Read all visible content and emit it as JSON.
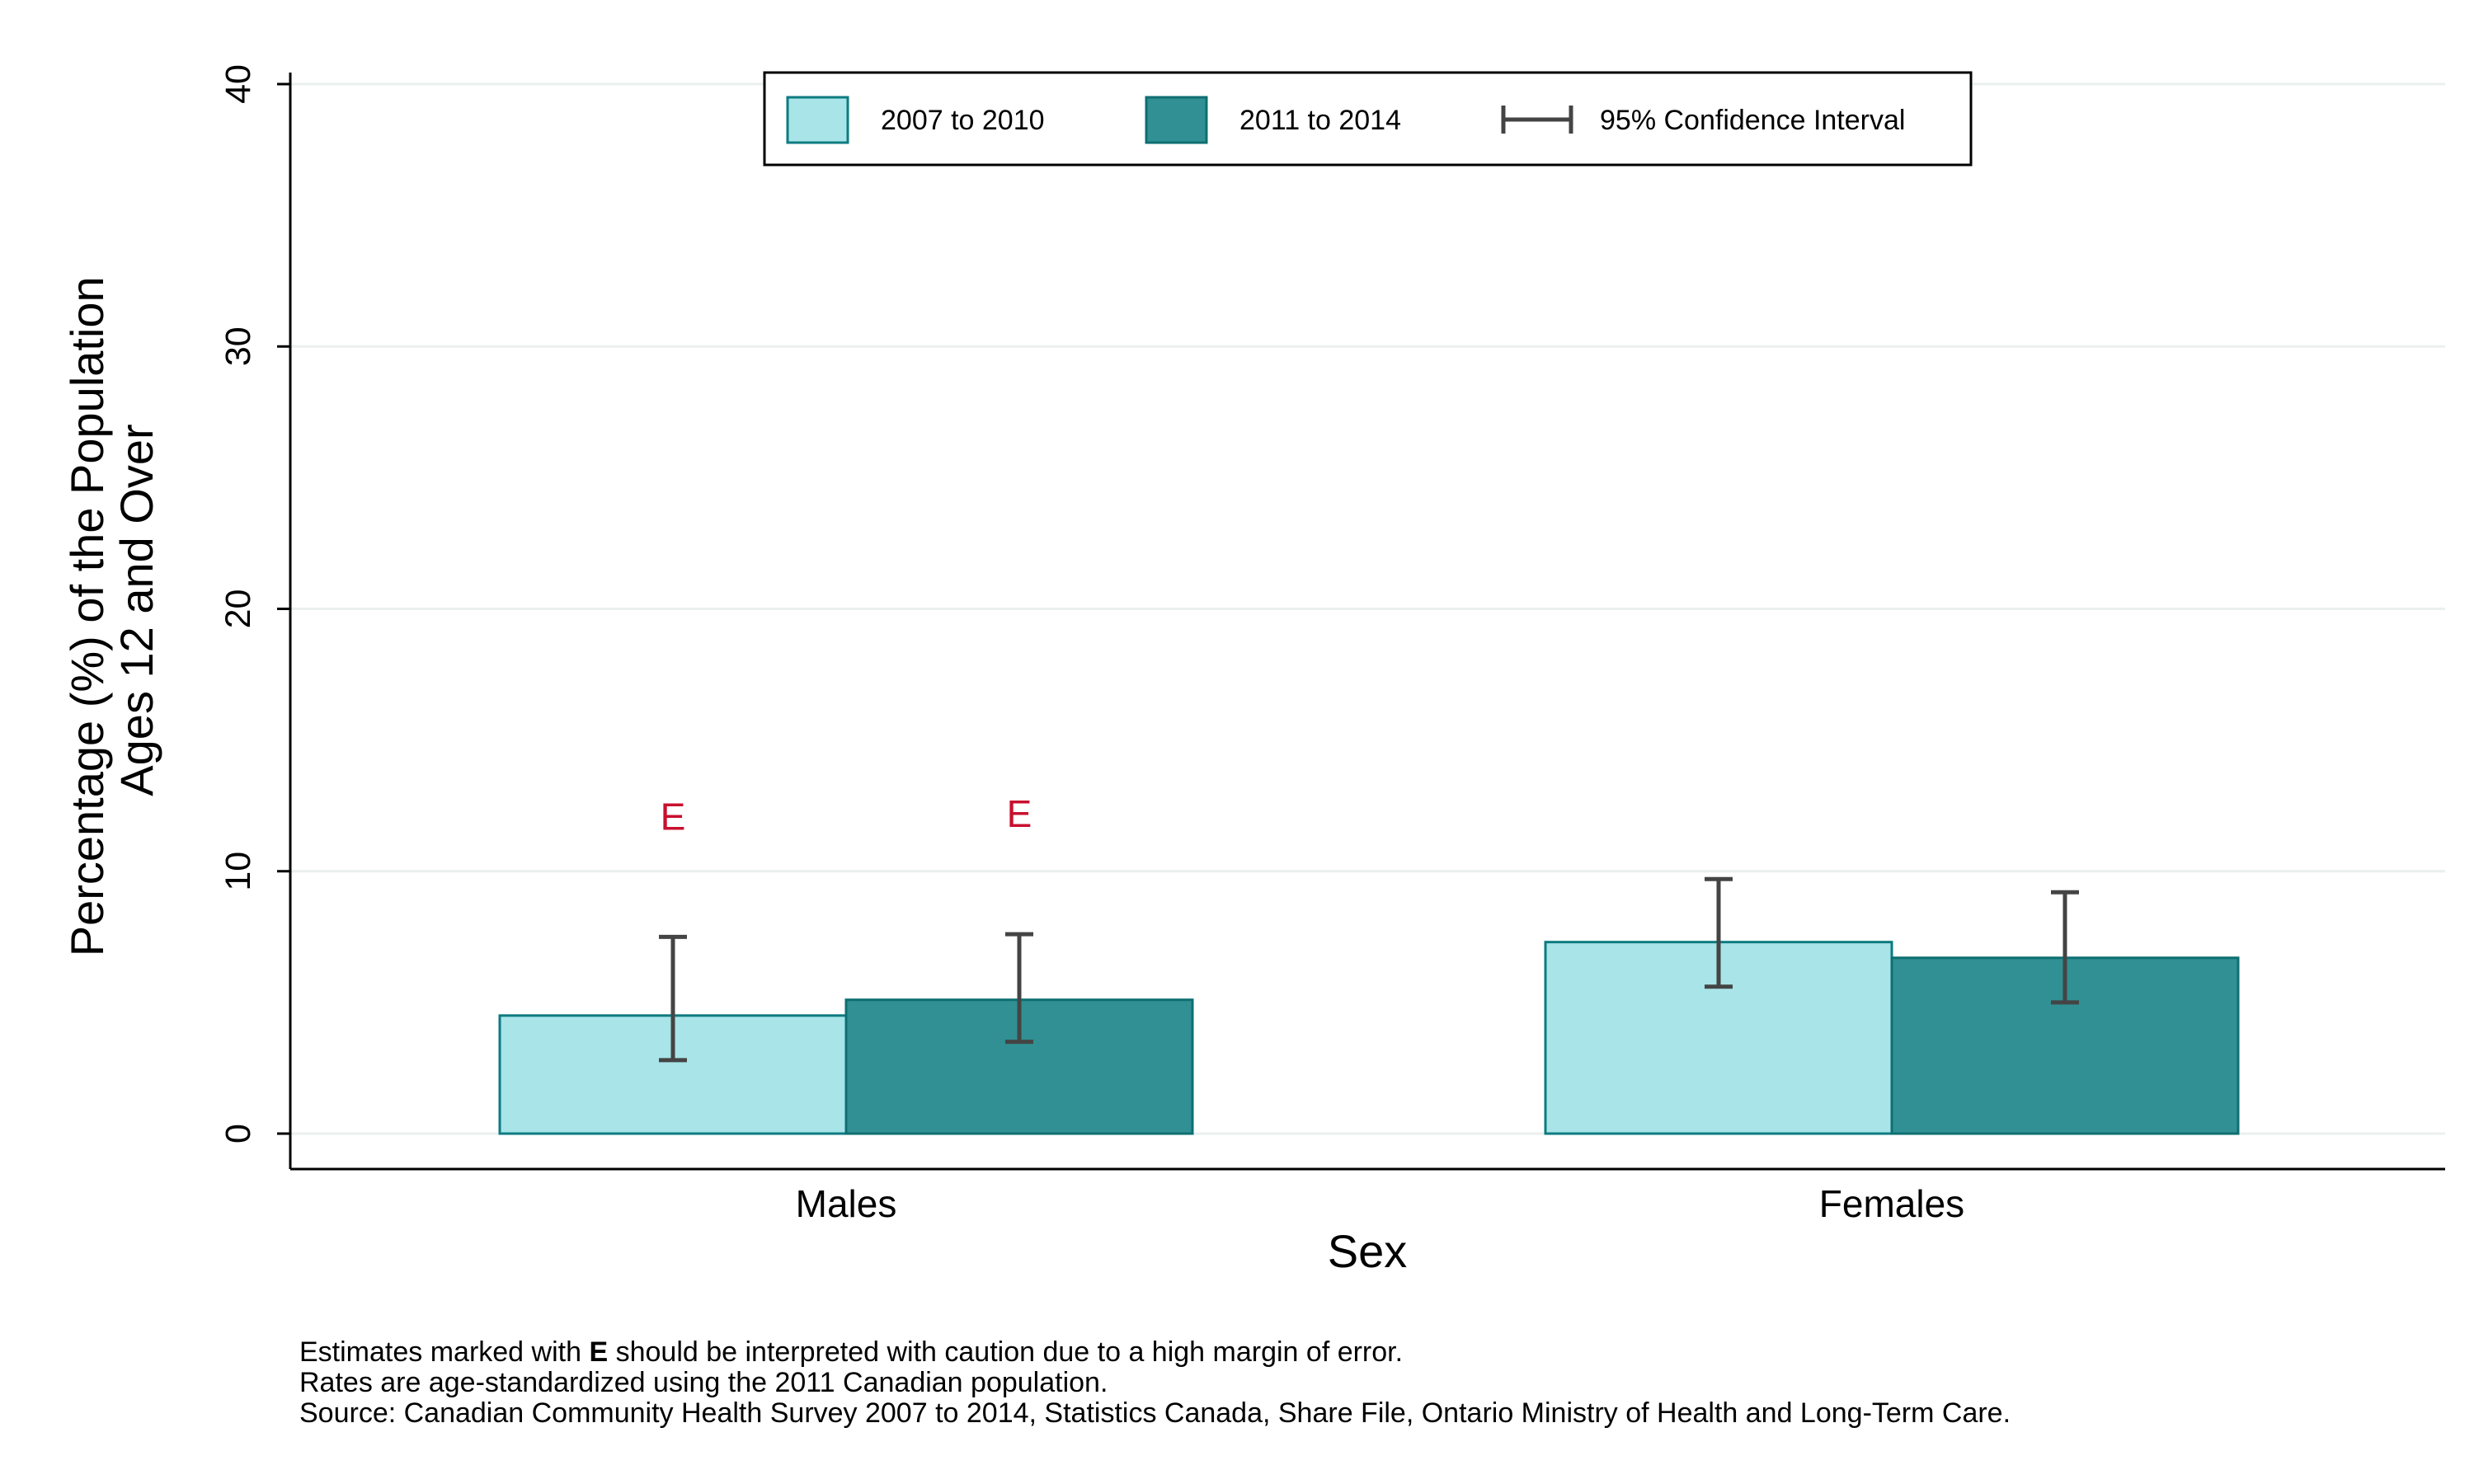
{
  "chart_data": {
    "type": "bar",
    "categories": [
      "Males",
      "Females"
    ],
    "series": [
      {
        "name": "2007 to 2010",
        "color": "#a8e4e8",
        "edge": "#0e7b80",
        "values": [
          4.5,
          7.3
        ],
        "ci_low": [
          2.8,
          5.6
        ],
        "ci_high": [
          7.5,
          9.7
        ],
        "flags": [
          "E",
          ""
        ]
      },
      {
        "name": "2011 to 2014",
        "color": "#319093",
        "edge": "#0e6f72",
        "values": [
          5.1,
          6.7
        ],
        "ci_low": [
          3.5,
          5.0
        ],
        "ci_high": [
          7.6,
          9.2
        ],
        "flags": [
          "E",
          ""
        ]
      }
    ],
    "ci_legend_label": "95% Confidence Interval",
    "ylim": [
      0,
      40
    ],
    "yticks": [
      "0",
      "10",
      "20",
      "30",
      "40"
    ],
    "ylabel_line1": "Percentage (%) of the Population",
    "ylabel_line2": "Ages 12 and Over",
    "xlabel": "Sex",
    "grid": true,
    "legend_position": "top",
    "flag_color": "#c8102e",
    "ci_color": "#444444"
  },
  "footnotes": {
    "line1_prefix": "Estimates marked with ",
    "line1_flag": "E",
    "line1_suffix": " should be interpreted with caution due to a high margin of error.",
    "line2": "Rates are age-standardized using the 2011 Canadian population.",
    "line3": "Source: Canadian Community Health Survey 2007 to 2014, Statistics Canada, Share File, Ontario Ministry of Health and Long-Term Care."
  }
}
